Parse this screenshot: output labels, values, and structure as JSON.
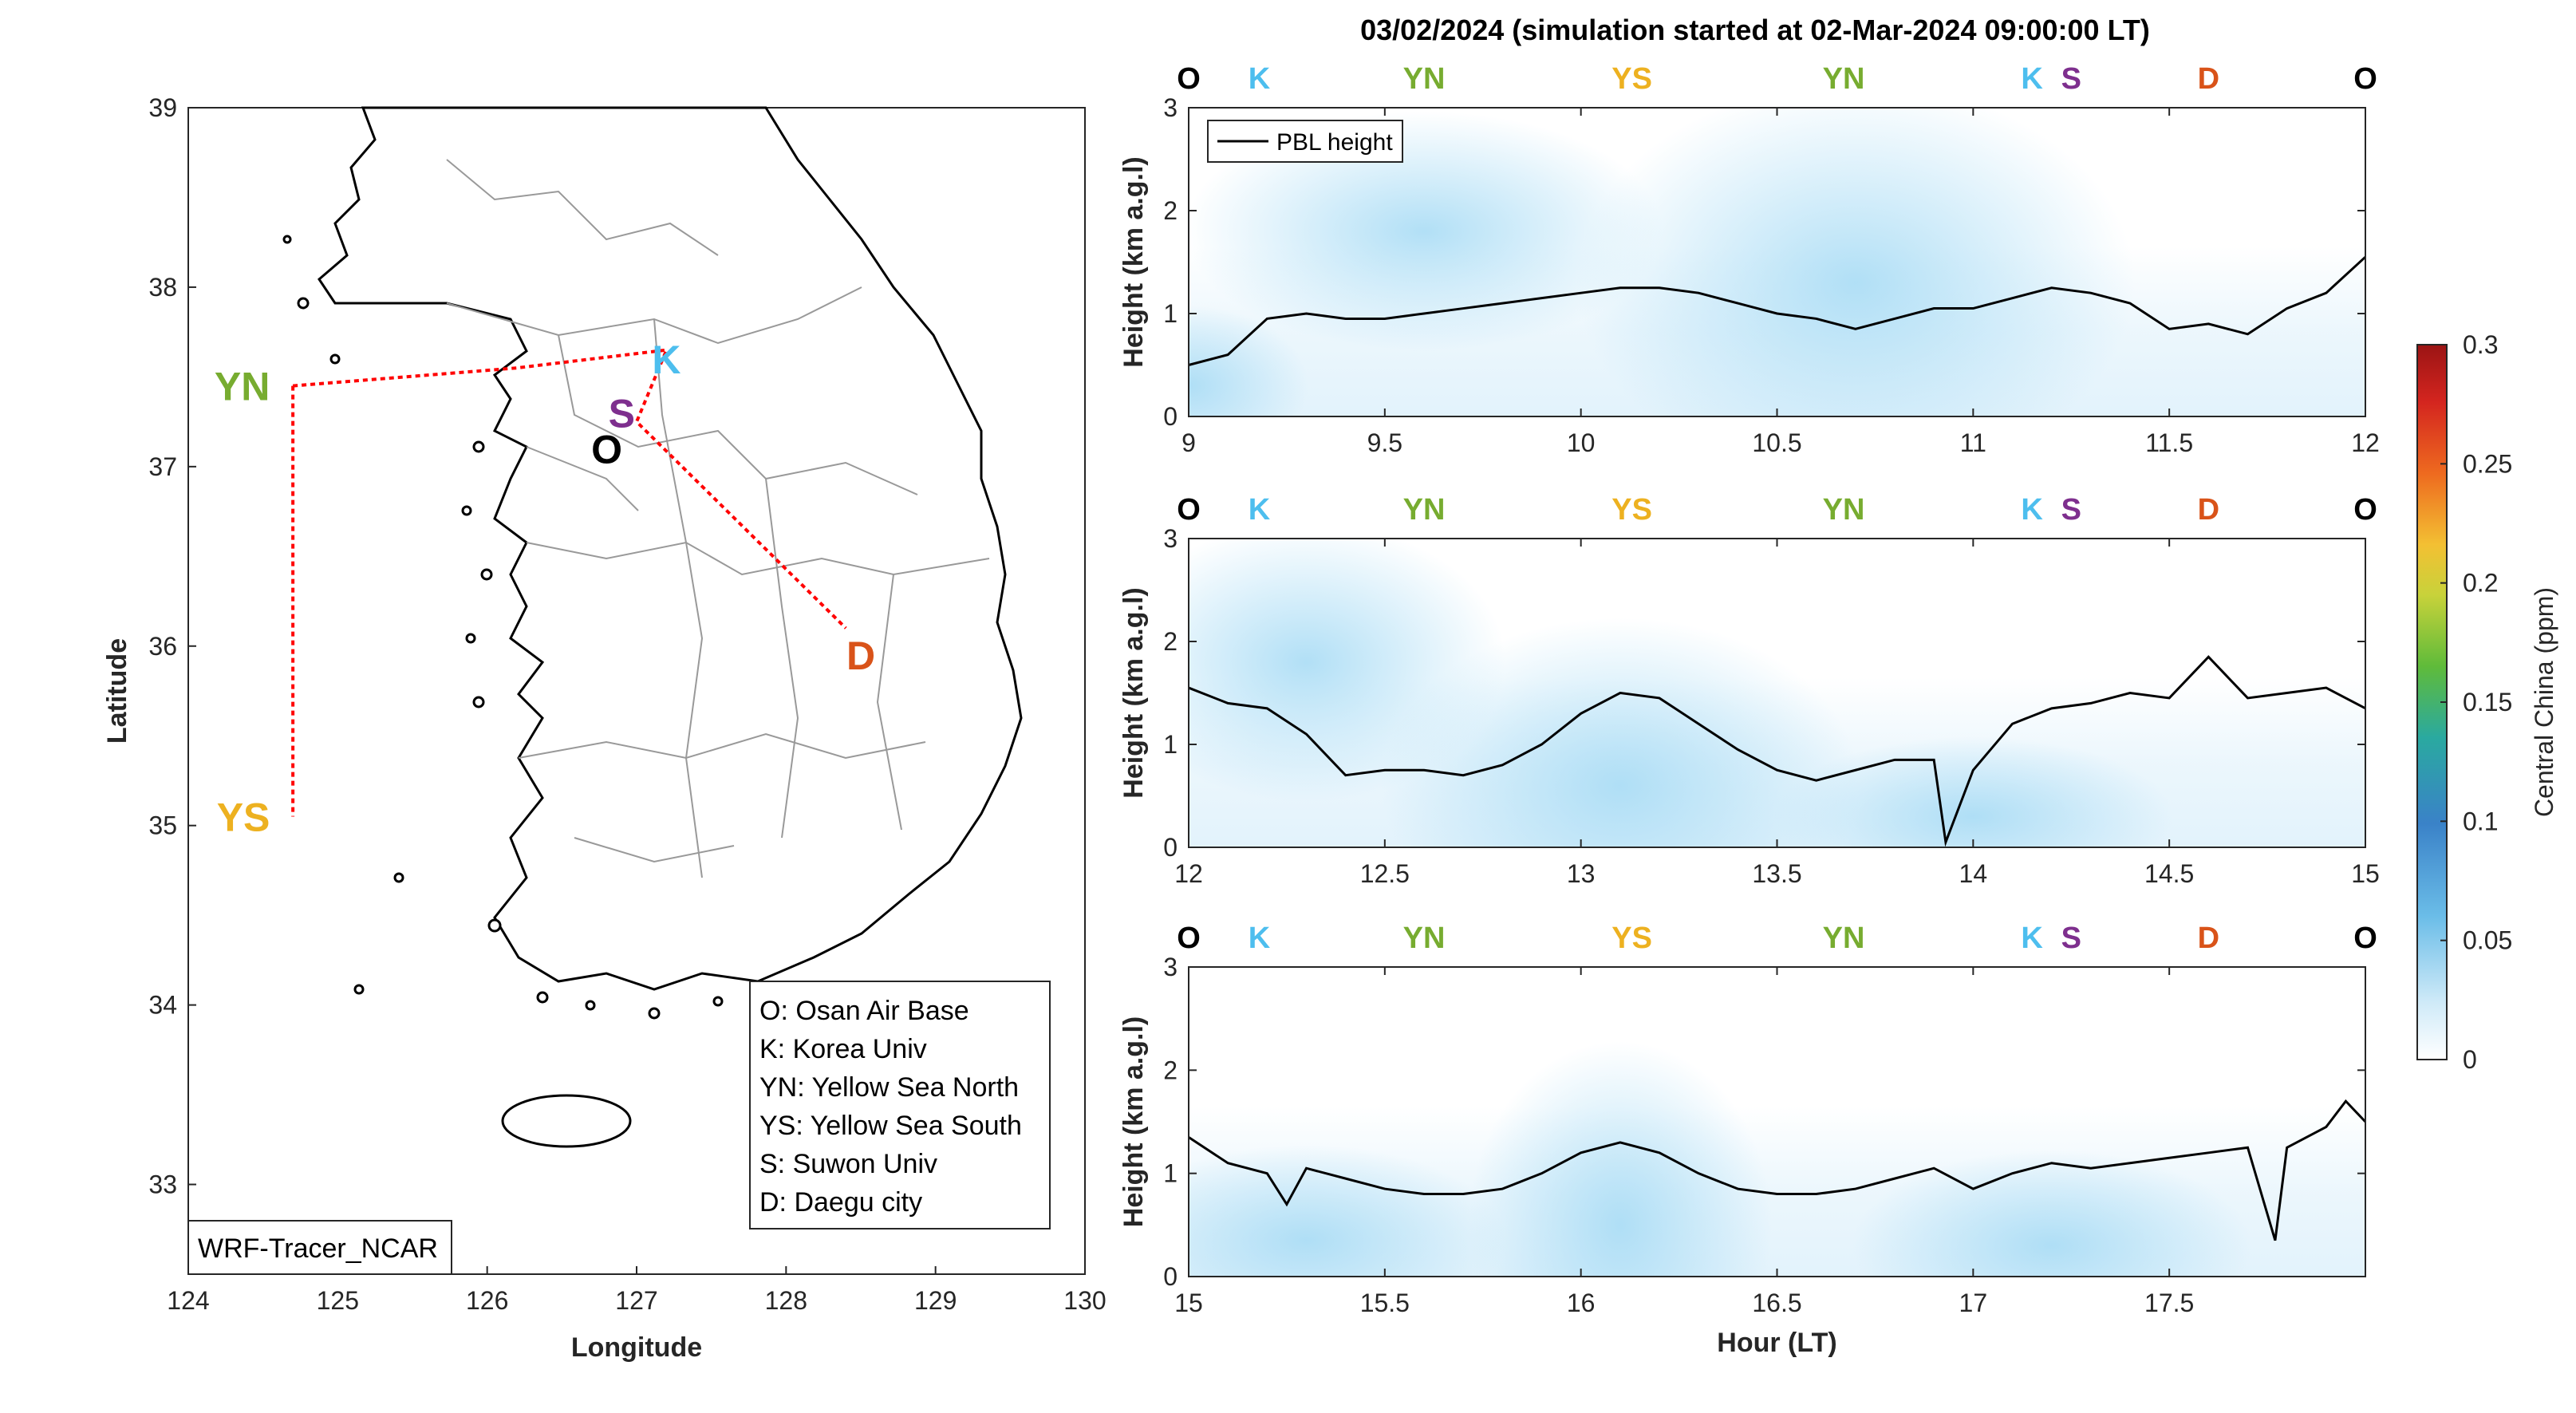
{
  "title": "03/02/2024 (simulation started at 02-Mar-2024 09:00:00 LT)",
  "colors": {
    "O": "#000000",
    "K": "#4DBEEE",
    "YN": "#77AC30",
    "YS": "#EDB120",
    "S": "#7E2F8E",
    "D": "#D95319",
    "track": "#ff0000",
    "pbl": "#000000"
  },
  "map": {
    "xlabel": "Longitude",
    "ylabel": "Latitude",
    "xlim": [
      124,
      130
    ],
    "ylim": [
      32.5,
      39
    ],
    "xticks": [
      "124",
      "125",
      "126",
      "127",
      "128",
      "129",
      "130"
    ],
    "yticks": [
      "33",
      "34",
      "35",
      "36",
      "37",
      "38",
      "39"
    ],
    "source_label": "WRF-Tracer_NCAR",
    "sites": [
      {
        "code": "K",
        "lon": 127.2,
        "lat": 37.6
      },
      {
        "code": "S",
        "lon": 126.9,
        "lat": 37.3
      },
      {
        "code": "O",
        "lon": 126.8,
        "lat": 37.1
      },
      {
        "code": "YN",
        "lon": 124.6,
        "lat": 37.45
      },
      {
        "code": "YS",
        "lon": 124.6,
        "lat": 35.05
      },
      {
        "code": "D",
        "lon": 128.5,
        "lat": 35.95
      }
    ],
    "track": [
      [
        124.7,
        37.45
      ],
      [
        126.2,
        37.55
      ],
      [
        127.2,
        37.65
      ],
      [
        127.0,
        37.25
      ],
      [
        128.4,
        36.1
      ]
    ],
    "track2": [
      [
        124.7,
        37.45
      ],
      [
        124.7,
        35.05
      ]
    ],
    "legend": [
      "O: Osan Air Base",
      "K: Korea Univ",
      "YN: Yellow Sea North",
      "YS: Yellow Sea South",
      "S: Suwon Univ",
      "D: Daegu city"
    ]
  },
  "chart_data": [
    {
      "type": "line",
      "x": [
        9.0,
        9.1,
        9.2,
        9.3,
        9.4,
        9.5,
        9.6,
        9.7,
        9.8,
        9.9,
        10.0,
        10.1,
        10.2,
        10.3,
        10.4,
        10.5,
        10.6,
        10.7,
        10.8,
        10.9,
        11.0,
        11.1,
        11.2,
        11.3,
        11.4,
        11.5,
        11.6,
        11.7,
        11.8,
        11.9,
        12.0
      ],
      "series": [
        {
          "name": "PBL height",
          "values": [
            0.5,
            0.6,
            0.95,
            1.0,
            0.95,
            0.95,
            1.0,
            1.05,
            1.1,
            1.15,
            1.2,
            1.25,
            1.25,
            1.2,
            1.1,
            1.0,
            0.95,
            0.85,
            0.95,
            1.05,
            1.05,
            1.15,
            1.25,
            1.2,
            1.1,
            0.85,
            0.9,
            0.8,
            1.05,
            1.2,
            1.55
          ]
        }
      ],
      "xlim": [
        9,
        12
      ],
      "ylim": [
        0,
        3
      ],
      "xticks": [
        "9",
        "9.5",
        "10",
        "10.5",
        "11",
        "11.5",
        "12"
      ],
      "yticks": [
        "0",
        "1",
        "2",
        "3"
      ],
      "ylabel": "Height (km a.g.l)",
      "legend": "top-left",
      "site_labels": [
        {
          "code": "O",
          "x": 9.0
        },
        {
          "code": "K",
          "x": 9.18
        },
        {
          "code": "YN",
          "x": 9.6
        },
        {
          "code": "YS",
          "x": 10.13
        },
        {
          "code": "YN",
          "x": 10.67
        },
        {
          "code": "K",
          "x": 11.15
        },
        {
          "code": "S",
          "x": 11.25
        },
        {
          "code": "D",
          "x": 11.6
        },
        {
          "code": "O",
          "x": 12.0
        }
      ]
    },
    {
      "type": "line",
      "x": [
        12.0,
        12.1,
        12.2,
        12.3,
        12.4,
        12.5,
        12.6,
        12.7,
        12.8,
        12.9,
        13.0,
        13.1,
        13.2,
        13.3,
        13.4,
        13.5,
        13.6,
        13.7,
        13.8,
        13.9,
        13.93,
        14.0,
        14.1,
        14.2,
        14.3,
        14.4,
        14.5,
        14.6,
        14.7,
        14.8,
        14.9,
        15.0
      ],
      "series": [
        {
          "name": "PBL height",
          "values": [
            1.55,
            1.4,
            1.35,
            1.1,
            0.7,
            0.75,
            0.75,
            0.7,
            0.8,
            1.0,
            1.3,
            1.5,
            1.45,
            1.2,
            0.95,
            0.75,
            0.65,
            0.75,
            0.85,
            0.85,
            0.05,
            0.75,
            1.2,
            1.35,
            1.4,
            1.5,
            1.45,
            1.85,
            1.45,
            1.5,
            1.55,
            1.35
          ]
        }
      ],
      "xlim": [
        12,
        15
      ],
      "ylim": [
        0,
        3
      ],
      "xticks": [
        "12",
        "12.5",
        "13",
        "13.5",
        "14",
        "14.5",
        "15"
      ],
      "yticks": [
        "0",
        "1",
        "2",
        "3"
      ],
      "ylabel": "Height (km a.g.l)",
      "site_labels": [
        {
          "code": "O",
          "x": 12.0
        },
        {
          "code": "K",
          "x": 12.18
        },
        {
          "code": "YN",
          "x": 12.6
        },
        {
          "code": "YS",
          "x": 13.13
        },
        {
          "code": "YN",
          "x": 13.67
        },
        {
          "code": "K",
          "x": 14.15
        },
        {
          "code": "S",
          "x": 14.25
        },
        {
          "code": "D",
          "x": 14.6
        },
        {
          "code": "O",
          "x": 15.0
        }
      ]
    },
    {
      "type": "line",
      "x": [
        15.0,
        15.1,
        15.2,
        15.25,
        15.3,
        15.4,
        15.5,
        15.6,
        15.7,
        15.8,
        15.9,
        16.0,
        16.1,
        16.2,
        16.3,
        16.4,
        16.5,
        16.6,
        16.7,
        16.8,
        16.9,
        17.0,
        17.1,
        17.2,
        17.3,
        17.4,
        17.5,
        17.6,
        17.7,
        17.77,
        17.8,
        17.9,
        17.95,
        18.0
      ],
      "series": [
        {
          "name": "PBL height",
          "values": [
            1.35,
            1.1,
            1.0,
            0.7,
            1.05,
            0.95,
            0.85,
            0.8,
            0.8,
            0.85,
            1.0,
            1.2,
            1.3,
            1.2,
            1.0,
            0.85,
            0.8,
            0.8,
            0.85,
            0.95,
            1.05,
            0.85,
            1.0,
            1.1,
            1.05,
            1.1,
            1.15,
            1.2,
            1.25,
            0.35,
            1.25,
            1.45,
            1.7,
            1.5
          ]
        }
      ],
      "xlim": [
        15,
        18
      ],
      "ylim": [
        0,
        3
      ],
      "xticks": [
        "15",
        "15.5",
        "16",
        "16.5",
        "17",
        "17.5"
      ],
      "yticks": [
        "0",
        "1",
        "2",
        "3"
      ],
      "xlabel": "Hour (LT)",
      "ylabel": "Height (km a.g.l)",
      "site_labels": [
        {
          "code": "O",
          "x": 15.0
        },
        {
          "code": "K",
          "x": 15.18
        },
        {
          "code": "YN",
          "x": 15.6
        },
        {
          "code": "YS",
          "x": 16.13
        },
        {
          "code": "YN",
          "x": 16.67
        },
        {
          "code": "K",
          "x": 17.15
        },
        {
          "code": "S",
          "x": 17.25
        },
        {
          "code": "D",
          "x": 17.6
        },
        {
          "code": "O",
          "x": 18.0
        }
      ]
    }
  ],
  "colorbar": {
    "label": "Central China (ppm)",
    "ticks": [
      "0",
      "0.05",
      "0.1",
      "0.15",
      "0.2",
      "0.25",
      "0.3"
    ],
    "range": [
      0,
      0.3
    ]
  }
}
